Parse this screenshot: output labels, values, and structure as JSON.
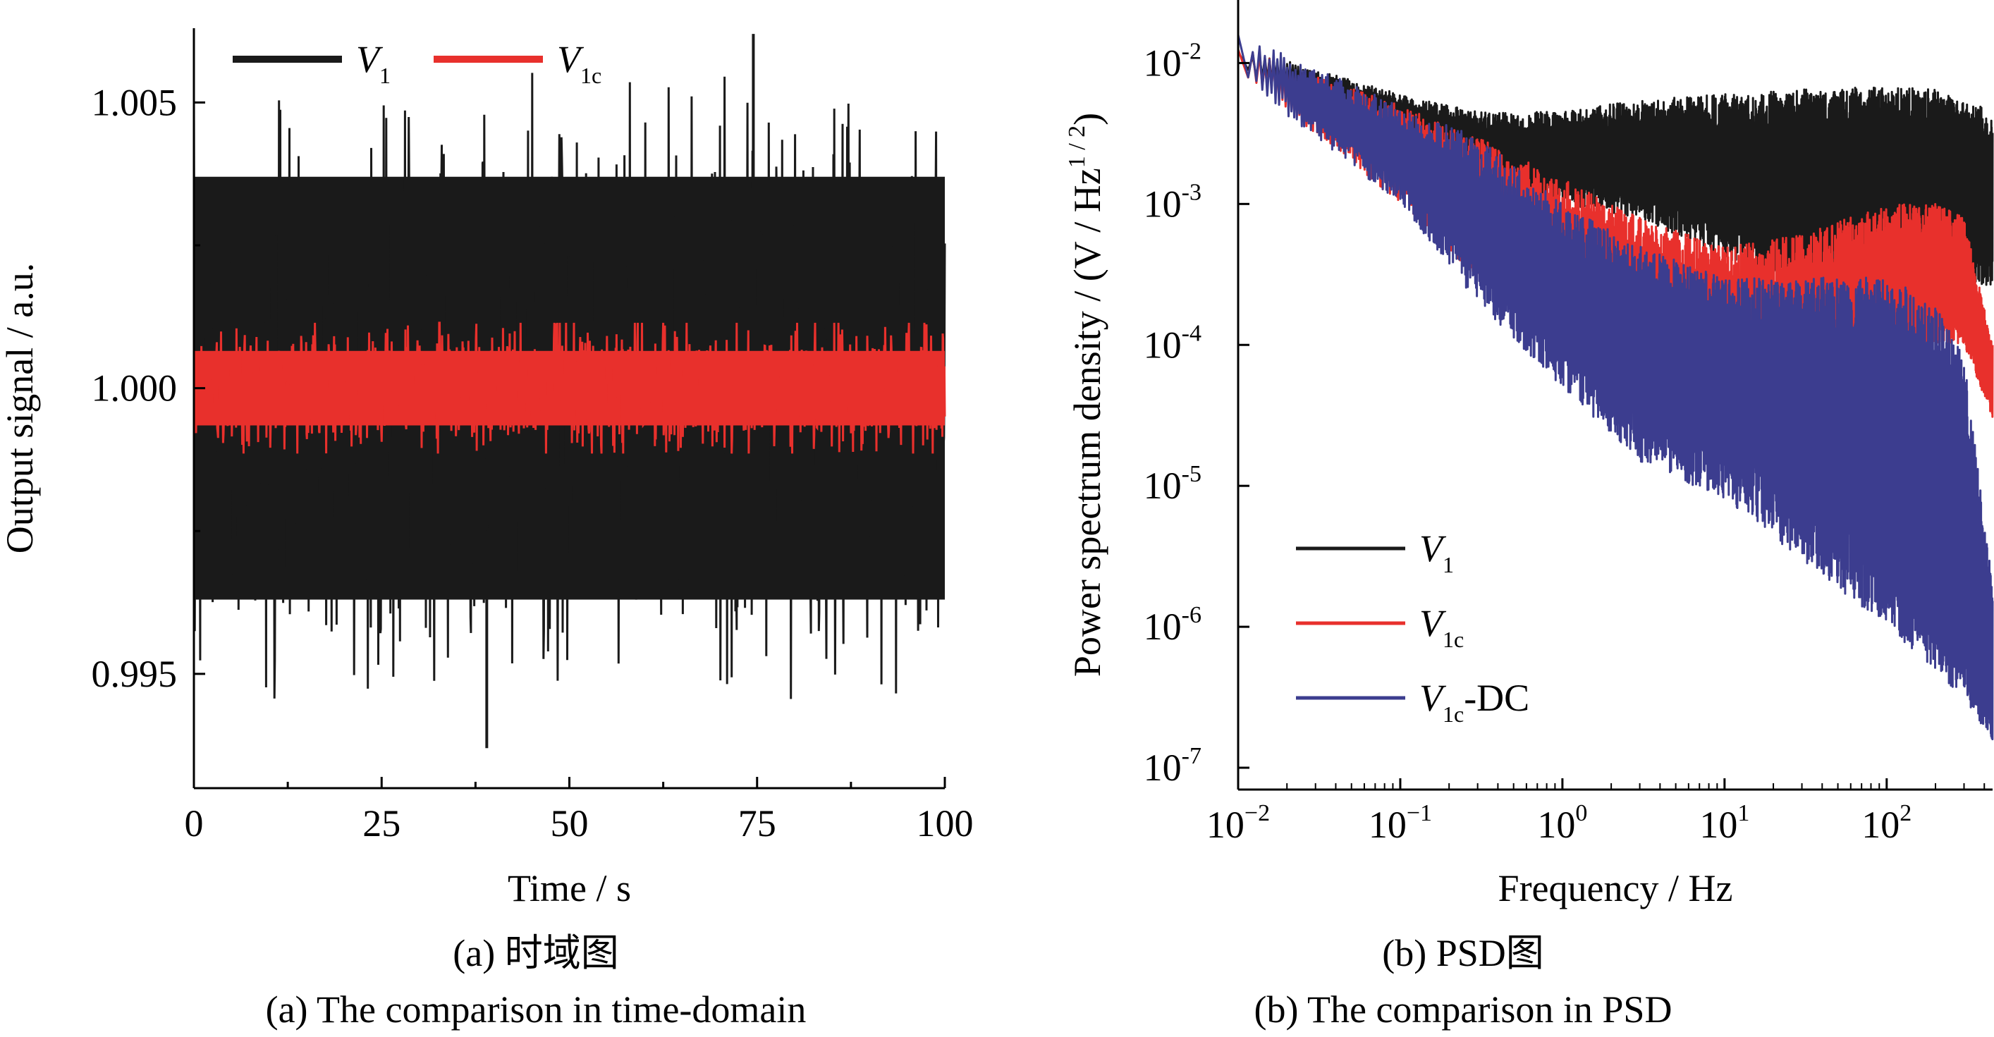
{
  "chart_data": [
    {
      "type": "line",
      "xlabel": "Time / s",
      "ylabel": "Output signal / a.u.",
      "xlim": [
        0,
        100
      ],
      "ylim": [
        0.993,
        1.0063
      ],
      "x_ticks": [
        "0",
        "25",
        "50",
        "75",
        "100"
      ],
      "y_ticks": [
        "0.995",
        "1.000",
        "1.005"
      ],
      "x_tick_values": [
        0,
        25,
        50,
        75,
        100
      ],
      "y_tick_values": [
        0.995,
        1.0,
        1.005
      ],
      "legend_position": "top-left",
      "series": [
        {
          "name": "V1",
          "label_main": "V",
          "label_sub": "1",
          "color": "#1a1a1a",
          "center": 1.0,
          "band_low": 0.9963,
          "band_high": 1.0037,
          "max": 1.0062,
          "max_x": 74.5,
          "min": 0.9937,
          "min_x": 39
        },
        {
          "name": "V1c",
          "label_main": "V",
          "label_sub": "1c",
          "color": "#e8302c",
          "center": 1.0,
          "band_low": 0.9992,
          "band_high": 1.0008
        }
      ]
    },
    {
      "type": "line",
      "xlabel": "Frequency / Hz",
      "ylabel": "Power spectrum density / (V / Hz1/2)",
      "ylabel_main": "Power spectrum density / (V / Hz",
      "ylabel_sup": "1 / 2",
      "ylabel_end": ")",
      "x_scale": "log",
      "y_scale": "log",
      "xlim": [
        0.01,
        450
      ],
      "ylim": [
        7e-08,
        0.028
      ],
      "x_tick_exps": [
        -2,
        -1,
        0,
        1,
        2
      ],
      "y_tick_exps": [
        -2,
        -3,
        -4,
        -5,
        -6,
        -7
      ],
      "x_tick_labels": [
        {
          "base": "10",
          "exp": "−2"
        },
        {
          "base": "10",
          "exp": "−1"
        },
        {
          "base": "10",
          "exp": "0"
        },
        {
          "base": "10",
          "exp": "1"
        },
        {
          "base": "10",
          "exp": "2"
        }
      ],
      "y_tick_labels": [
        {
          "base": "10",
          "exp": "-2"
        },
        {
          "base": "10",
          "exp": "-3"
        },
        {
          "base": "10",
          "exp": "-4"
        },
        {
          "base": "10",
          "exp": "-5"
        },
        {
          "base": "10",
          "exp": "-6"
        },
        {
          "base": "10",
          "exp": "-7"
        }
      ],
      "legend_position": "bottom-left",
      "series": [
        {
          "name": "V1",
          "label_main": "V",
          "label_sub": "1",
          "label_suffix": "",
          "color": "#1a1a1a",
          "envelope": {
            "f": [
              0.01,
              0.1,
              0.3,
              1,
              3,
              10,
              30,
              100,
              200,
              300,
              450
            ],
            "upper": [
              0.013,
              0.006,
              0.0045,
              0.0045,
              0.0055,
              0.006,
              0.0065,
              0.0068,
              0.0065,
              0.0055,
              0.0045
            ],
            "lower": [
              0.009,
              0.003,
              0.0015,
              0.001,
              0.0008,
              0.0004,
              0.0003,
              0.0003,
              0.0003,
              0.0003,
              0.00025
            ]
          }
        },
        {
          "name": "V1c",
          "label_main": "V",
          "label_sub": "1c",
          "label_suffix": "",
          "color": "#e8302c",
          "envelope": {
            "f": [
              0.01,
              0.1,
              0.3,
              1,
              3,
              10,
              30,
              100,
              200,
              300,
              450
            ],
            "upper": [
              0.013,
              0.005,
              0.003,
              0.0015,
              0.0008,
              0.0005,
              0.0006,
              0.001,
              0.001,
              0.0008,
              0.0001
            ],
            "lower": [
              0.009,
              0.001,
              0.0003,
              0.0001,
              3e-05,
              2e-05,
              1e-05,
              3e-05,
              0.0001,
              0.0001,
              3e-05
            ]
          }
        },
        {
          "name": "V1c-DC",
          "label_main": "V",
          "label_sub": "1c",
          "label_suffix": "-DC",
          "color": "#3c3d8f",
          "envelope": {
            "f": [
              0.01,
              0.1,
              0.3,
              1,
              3,
              10,
              30,
              100,
              200,
              300,
              450
            ],
            "upper": [
              0.016,
              0.005,
              0.003,
              0.001,
              0.0005,
              0.0003,
              0.0003,
              0.0003,
              0.0002,
              8e-05,
              2e-06
            ],
            "lower": [
              0.008,
              0.001,
              0.0002,
              5e-05,
              1.5e-05,
              8e-06,
              3e-06,
              1e-06,
              5e-07,
              3e-07,
              1.5e-07
            ]
          }
        }
      ]
    }
  ],
  "captions": {
    "left_cn": "(a) 时域图",
    "left_en": "(a) The comparison in time-domain",
    "right_cn": "(b) PSD图",
    "right_en": "(b) The comparison in PSD"
  }
}
